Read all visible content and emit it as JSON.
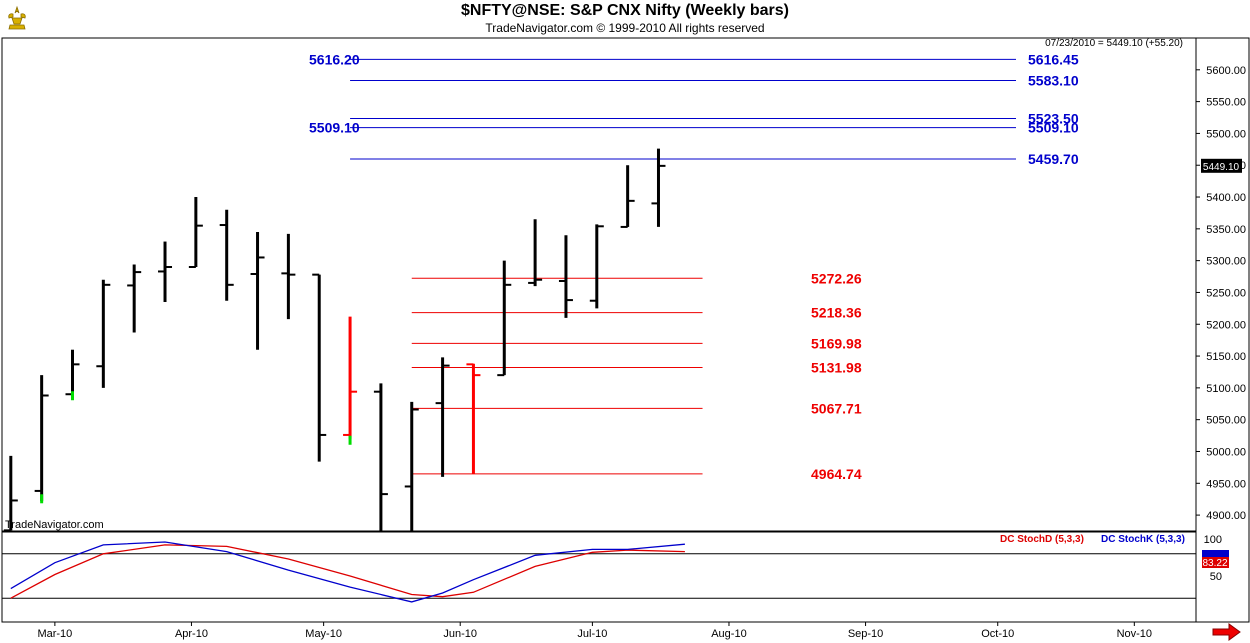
{
  "header": {
    "title": "$NFTY@NSE:  S&P CNX Nifty  (Weekly bars)",
    "subtitle": "TradeNavigator.com © 1999-2010 All rights reserved"
  },
  "colors": {
    "up": "#000000",
    "down": "#ff0000",
    "green_tick": "#00dd00",
    "blue_levels": "#0000cc",
    "red_levels": "#ee0000",
    "stoch_d": "#dd0000",
    "stoch_k": "#0000cc",
    "logo": "#d8b000"
  },
  "icons": {
    "logo": "gold-ornament-icon",
    "scroll_right": "red-right-arrow-icon"
  },
  "chart_data": [
    {
      "type": "ohlc",
      "title": "$NFTY@NSE:  S&P CNX Nifty  (Weekly bars)",
      "watermark": "TradeNavigator.com",
      "last_readout": "07/23/2010 = 5449.10 (+55.20)",
      "last_price_label": "5449.10",
      "last_price": 5449.1,
      "ylim": [
        4875,
        5650
      ],
      "y_ticks": [
        "4900.00",
        "4950.00",
        "5000.00",
        "5050.00",
        "5100.00",
        "5150.00",
        "5200.00",
        "5250.00",
        "5300.00",
        "5350.00",
        "5400.00",
        "5450.00",
        "5500.00",
        "5550.00",
        "5600.00"
      ],
      "x_ticks": [
        {
          "label": "Mar-10",
          "date": "2010-03-01"
        },
        {
          "label": "Apr-10",
          "date": "2010-04-01"
        },
        {
          "label": "May-10",
          "date": "2010-05-01"
        },
        {
          "label": "Jun-10",
          "date": "2010-06-01"
        },
        {
          "label": "Jul-10",
          "date": "2010-07-01"
        },
        {
          "label": "Aug-10",
          "date": "2010-08-01"
        },
        {
          "label": "Sep-10",
          "date": "2010-09-01"
        },
        {
          "label": "Oct-10",
          "date": "2010-10-01"
        },
        {
          "label": "Nov-10",
          "date": "2010-11-01"
        }
      ],
      "xlim": [
        "2010-02-17",
        "2010-11-15"
      ],
      "bars": [
        {
          "date": "2010-02-19",
          "open": 4876,
          "high": 4993,
          "low": 4876,
          "close": 4923,
          "color": "black"
        },
        {
          "date": "2010-02-26",
          "open": 4938,
          "high": 5120,
          "low": 4922,
          "close": 5088,
          "color": "black"
        },
        {
          "date": "2010-03-05",
          "open": 5090,
          "high": 5160,
          "low": 5088,
          "close": 5137,
          "color": "black"
        },
        {
          "date": "2010-03-12",
          "open": 5134,
          "high": 5270,
          "low": 5100,
          "close": 5262,
          "color": "black"
        },
        {
          "date": "2010-03-19",
          "open": 5261,
          "high": 5294,
          "low": 5187,
          "close": 5282,
          "color": "black"
        },
        {
          "date": "2010-03-26",
          "open": 5283,
          "high": 5330,
          "low": 5235,
          "close": 5290,
          "color": "black"
        },
        {
          "date": "2010-04-02",
          "open": 5290,
          "high": 5400,
          "low": 5290,
          "close": 5355,
          "color": "black"
        },
        {
          "date": "2010-04-09",
          "open": 5356,
          "high": 5380,
          "low": 5237,
          "close": 5262,
          "color": "black"
        },
        {
          "date": "2010-04-16",
          "open": 5279,
          "high": 5345,
          "low": 5160,
          "close": 5305,
          "color": "black"
        },
        {
          "date": "2010-04-23",
          "open": 5280,
          "high": 5342,
          "low": 5208,
          "close": 5278,
          "color": "black"
        },
        {
          "date": "2010-04-30",
          "open": 5278,
          "high": 5278,
          "low": 4984,
          "close": 5026,
          "color": "black"
        },
        {
          "date": "2010-05-07",
          "open": 5026,
          "high": 5212,
          "low": 5020,
          "close": 5094,
          "color": "red"
        },
        {
          "date": "2010-05-14",
          "open": 5094,
          "high": 5107,
          "low": 4875,
          "close": 4933,
          "color": "black"
        },
        {
          "date": "2010-05-21",
          "open": 4945,
          "high": 5078,
          "low": 4875,
          "close": 5066,
          "color": "black"
        },
        {
          "date": "2010-05-28",
          "open": 5076,
          "high": 5148,
          "low": 4960,
          "close": 5135,
          "color": "black"
        },
        {
          "date": "2010-06-04",
          "open": 5137,
          "high": 5138,
          "low": 4965,
          "close": 5120,
          "color": "red"
        },
        {
          "date": "2010-06-11",
          "open": 5120,
          "high": 5300,
          "low": 5120,
          "close": 5262,
          "color": "black"
        },
        {
          "date": "2010-06-18",
          "open": 5265,
          "high": 5365,
          "low": 5260,
          "close": 5270,
          "color": "black"
        },
        {
          "date": "2010-06-25",
          "open": 5268,
          "high": 5340,
          "low": 5210,
          "close": 5238,
          "color": "black"
        },
        {
          "date": "2010-07-02",
          "open": 5237,
          "high": 5357,
          "low": 5225,
          "close": 5354,
          "color": "black"
        },
        {
          "date": "2010-07-09",
          "open": 5353,
          "high": 5450,
          "low": 5353,
          "close": 5394,
          "color": "black"
        },
        {
          "date": "2010-07-16",
          "open": 5390,
          "high": 5476,
          "low": 5353,
          "close": 5449,
          "color": "black"
        }
      ],
      "green_marks": [
        {
          "date": "2010-02-26",
          "value": 4928
        },
        {
          "date": "2010-03-05",
          "value": 5090
        },
        {
          "date": "2010-05-07",
          "value": 5020
        }
      ],
      "blue_levels": [
        {
          "value": 5616.45,
          "label": "5616.45",
          "side": "right",
          "from": "2010-05-07"
        },
        {
          "value": 5583.1,
          "label": "5583.10",
          "side": "right",
          "from": "2010-05-07"
        },
        {
          "value": 5523.5,
          "label": "5523.50",
          "side": "right",
          "from": "2010-05-07"
        },
        {
          "value": 5509.1,
          "label": "5509.10",
          "side": "right",
          "from": "2010-05-07"
        },
        {
          "value": 5459.7,
          "label": "5459.70",
          "side": "right",
          "from": "2010-05-07"
        }
      ],
      "blue_left_labels": [
        {
          "value": 5616.2,
          "label": "5616.20"
        },
        {
          "value": 5509.1,
          "label": "5509.10"
        }
      ],
      "red_levels": [
        {
          "value": 5272.26,
          "label": "5272.26"
        },
        {
          "value": 5218.36,
          "label": "5218.36"
        },
        {
          "value": 5169.98,
          "label": "5169.98"
        },
        {
          "value": 5131.98,
          "label": "5131.98"
        },
        {
          "value": 5067.71,
          "label": "5067.71"
        },
        {
          "value": 4964.74,
          "label": "4964.74"
        }
      ],
      "red_levels_range": [
        "2010-05-21",
        "2010-07-26"
      ]
    },
    {
      "type": "line",
      "indicator": "stochastic",
      "ylim": [
        0,
        100
      ],
      "y_ticks": [
        "100",
        "50"
      ],
      "reference_lines": [
        80,
        20
      ],
      "last_value_label": "83.22",
      "series": [
        {
          "name": "DC StochD (5,3,3)",
          "color": "#dd0000",
          "x": [
            "2010-02-19",
            "2010-03-01",
            "2010-03-12",
            "2010-03-26",
            "2010-04-09",
            "2010-04-23",
            "2010-05-07",
            "2010-05-21",
            "2010-05-28",
            "2010-06-04",
            "2010-06-18",
            "2010-07-01",
            "2010-07-09",
            "2010-07-22"
          ],
          "values": [
            20,
            52,
            80,
            92,
            90,
            73,
            50,
            25,
            22,
            28,
            63,
            82,
            85,
            83
          ]
        },
        {
          "name": "DC StochK (5,3,3)",
          "color": "#0000cc",
          "x": [
            "2010-02-19",
            "2010-03-01",
            "2010-03-12",
            "2010-03-26",
            "2010-04-09",
            "2010-04-23",
            "2010-05-07",
            "2010-05-21",
            "2010-05-28",
            "2010-06-04",
            "2010-06-18",
            "2010-07-01",
            "2010-07-09",
            "2010-07-22"
          ],
          "values": [
            33,
            68,
            92,
            96,
            83,
            58,
            35,
            15,
            27,
            45,
            78,
            86,
            86,
            93
          ]
        }
      ]
    }
  ]
}
